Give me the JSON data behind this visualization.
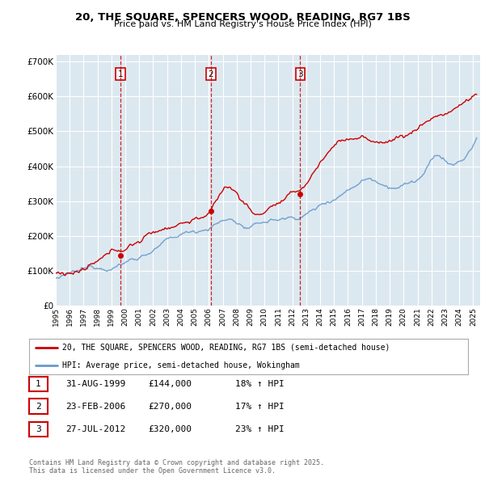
{
  "title": "20, THE SQUARE, SPENCERS WOOD, READING, RG7 1BS",
  "subtitle": "Price paid vs. HM Land Registry's House Price Index (HPI)",
  "plot_bg_color": "#dce8f0",
  "red_color": "#cc0000",
  "blue_color": "#6699cc",
  "grid_color": "#ffffff",
  "legend1": "20, THE SQUARE, SPENCERS WOOD, READING, RG7 1BS (semi-detached house)",
  "legend2": "HPI: Average price, semi-detached house, Wokingham",
  "transactions": [
    {
      "num": 1,
      "date": "31-AUG-1999",
      "price": 144000,
      "hpi_pct": "18% ↑ HPI",
      "year": 1999.67
    },
    {
      "num": 2,
      "date": "23-FEB-2006",
      "price": 270000,
      "hpi_pct": "17% ↑ HPI",
      "year": 2006.15
    },
    {
      "num": 3,
      "date": "27-JUL-2012",
      "price": 320000,
      "hpi_pct": "23% ↑ HPI",
      "year": 2012.57
    }
  ],
  "vline_years": [
    1999.67,
    2006.15,
    2012.57
  ],
  "footer": "Contains HM Land Registry data © Crown copyright and database right 2025.\nThis data is licensed under the Open Government Licence v3.0.",
  "ylim": [
    0,
    720000
  ],
  "xlim_start": 1995.0,
  "xlim_end": 2025.5
}
